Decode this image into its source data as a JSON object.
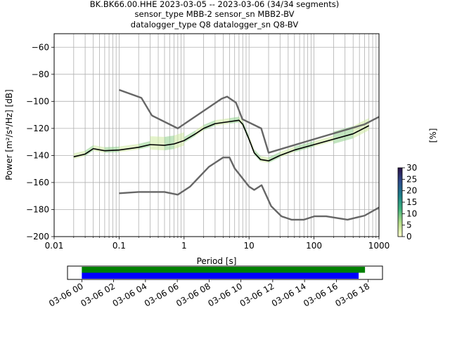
{
  "chart_data": [
    {
      "type": "line",
      "title_lines": [
        "BK.BK66.00.HHE   2023-03-05 -- 2023-03-06  (34/34 segments)",
        "sensor_type MBB-2 sensor_sn MBB2-BV",
        "datalogger_type Q8 datalogger_sn Q8-BV"
      ],
      "xlabel": "Period [s]",
      "ylabel": "Power [m²/s⁴/Hz] [dB]",
      "xscale": "log",
      "xlim": [
        0.01,
        1000
      ],
      "ylim": [
        -200,
        -50
      ],
      "x_ticks": [
        0.01,
        0.1,
        1,
        10,
        100,
        1000
      ],
      "x_tick_labels": [
        "0.01",
        "0.1",
        "1",
        "10",
        "100",
        "1000"
      ],
      "y_ticks": [
        -200,
        -180,
        -160,
        -140,
        -120,
        -100,
        -80,
        -60
      ],
      "y_tick_labels": [
        "−200",
        "−180",
        "−160",
        "−140",
        "−120",
        "−100",
        "−80",
        "−60"
      ],
      "grid": true,
      "series": [
        {
          "color": "#666666",
          "x": [
            0.1,
            0.22,
            0.32,
            0.8,
            3.8,
            4.6,
            6.3,
            7.9,
            15.4,
            20,
            100,
            600,
            1000
          ],
          "y": [
            -91.5,
            -97.4,
            -110.5,
            -120.0,
            -98.0,
            -96.5,
            -101.0,
            -113.2,
            -120.0,
            -138.0,
            -128.0,
            -117.0,
            -111.5
          ]
        },
        {
          "color": "#666666",
          "x": [
            0.1,
            0.2,
            0.5,
            0.8,
            1.24,
            2.4,
            4.0,
            5.0,
            6.0,
            10,
            12,
            15.6,
            21.9,
            31.6,
            45,
            70,
            101,
            154,
            328,
            600,
            1000
          ],
          "y": [
            -168.0,
            -167.0,
            -167.0,
            -169.0,
            -163.0,
            -148.5,
            -141.5,
            -141.5,
            -149.5,
            -163.0,
            -165.5,
            -162.0,
            -177.5,
            -185.0,
            -187.5,
            -187.5,
            -185.0,
            -185.0,
            -187.5,
            -184.5,
            -178.5
          ]
        },
        {
          "color": "#000000",
          "x": [
            0.02,
            0.03,
            0.04,
            0.06,
            0.1,
            0.2,
            0.3,
            0.5,
            0.7,
            1,
            1.5,
            2,
            3,
            5,
            7,
            8,
            10,
            12,
            15,
            20,
            30,
            50,
            100,
            200,
            400,
            700
          ],
          "y": [
            -141,
            -139,
            -135,
            -136.5,
            -136,
            -134,
            -132,
            -132.5,
            -131.5,
            -129,
            -124,
            -120,
            -116.5,
            -115,
            -114,
            -117,
            -128,
            -138,
            -143,
            -144,
            -140,
            -136,
            -132,
            -128,
            -124,
            -118
          ]
        }
      ],
      "colorbar": {
        "label": "[%]",
        "range": [
          0,
          30
        ],
        "ticks": [
          0,
          5,
          10,
          15,
          20,
          25,
          30
        ],
        "tick_labels": [
          "0",
          "5",
          "10",
          "15",
          "20",
          "25",
          "30"
        ]
      }
    },
    {
      "type": "timeline",
      "x_tick_labels": [
        "03-06 00",
        "03-06 02",
        "03-06 04",
        "03-06 06",
        "03-06 08",
        "03-06 10",
        "03-06 12",
        "03-06 14",
        "03-06 16",
        "03-06 18"
      ],
      "x_ticks_hours": [
        0,
        2,
        4,
        6,
        8,
        10,
        12,
        14,
        16,
        18
      ],
      "xlim_hours": [
        -0.9,
        18.9
      ],
      "bars": [
        {
          "color": "#008000",
          "start_hour": 0,
          "end_hour": 17.8
        },
        {
          "color": "#0000ff",
          "start_hour": 0,
          "end_hour": 17.4
        }
      ]
    }
  ]
}
